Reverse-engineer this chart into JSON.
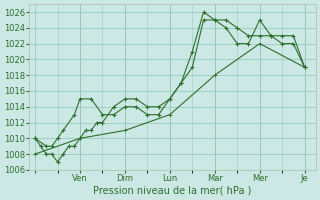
{
  "background_color": "#cce8e4",
  "grid_color": "#99ccbb",
  "line_color": "#2d6e2d",
  "marker_color": "#2d6e2d",
  "xlabel": "Pression niveau de la mer( hPa )",
  "ylim": [
    1006,
    1027
  ],
  "yticks": [
    1006,
    1008,
    1010,
    1012,
    1014,
    1016,
    1018,
    1020,
    1022,
    1024,
    1026
  ],
  "xtick_positions": [
    0,
    4,
    8,
    12,
    16,
    20,
    24
  ],
  "xtick_labels": [
    "",
    "Ven",
    "Dim",
    "Lun",
    "Mar",
    "Mer",
    "Je"
  ],
  "xlim": [
    -0.5,
    25
  ],
  "series1_x": [
    0,
    0.5,
    1.0,
    1.5,
    2.0,
    2.5,
    3.0,
    3.5,
    4.0,
    4.5,
    5.0,
    5.5,
    6.0,
    7.0,
    8.0,
    9.0,
    10.0,
    11.0,
    12.0,
    13.0,
    14.0,
    15.0,
    16.0,
    17.0,
    18.0,
    19.0,
    20.0,
    21.0,
    22.0,
    23.0,
    24.0
  ],
  "series1_y": [
    1010,
    1009,
    1008,
    1008,
    1007,
    1008,
    1009,
    1009,
    1010,
    1011,
    1011,
    1012,
    1012,
    1014,
    1015,
    1015,
    1014,
    1014,
    1015,
    1017,
    1021,
    1026,
    1025,
    1024,
    1022,
    1022,
    1025,
    1023,
    1023,
    1023,
    1019
  ],
  "series2_x": [
    0,
    1.0,
    1.5,
    2.0,
    2.5,
    3.5,
    4.0,
    5.0,
    6.0,
    7.0,
    8.0,
    9.0,
    10.0,
    11.0,
    12.0,
    13.0,
    14.0,
    15.0,
    16.0,
    17.0,
    18.0,
    19.0,
    20.0,
    21.0,
    22.0,
    23.0,
    24.0
  ],
  "series2_y": [
    1010,
    1009,
    1009,
    1010,
    1011,
    1013,
    1015,
    1015,
    1013,
    1013,
    1014,
    1014,
    1013,
    1013,
    1015,
    1017,
    1019,
    1025,
    1025,
    1025,
    1024,
    1023,
    1023,
    1023,
    1022,
    1022,
    1019
  ],
  "series3_x": [
    0,
    4,
    8,
    12,
    16,
    20,
    24
  ],
  "series3_y": [
    1008,
    1010,
    1011,
    1013,
    1018,
    1022,
    1019
  ]
}
